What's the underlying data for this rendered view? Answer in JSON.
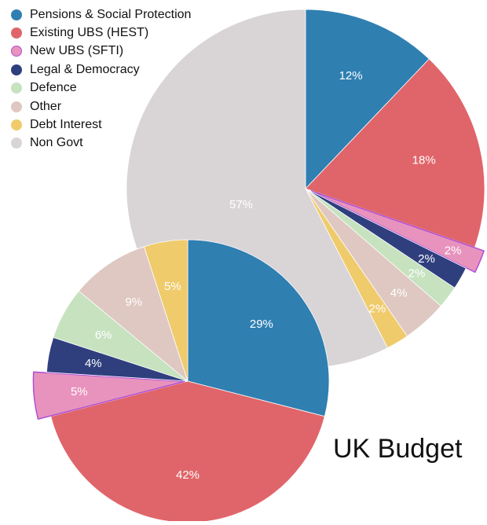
{
  "chart_data": [
    {
      "type": "pie",
      "title": "",
      "categories": [
        "Pensions & Social Protection",
        "Existing UBS (HEST)",
        "New UBS (SFTI)",
        "Legal & Democracy",
        "Defence",
        "Other",
        "Debt Interest",
        "Non Govt"
      ],
      "values": [
        12,
        18,
        2,
        2,
        2,
        4,
        2,
        57
      ],
      "data_labels": [
        "12%",
        "18%",
        "2%",
        "2%",
        "2%",
        "4%",
        "2%",
        "57%"
      ],
      "exploded": [
        "New UBS (SFTI)"
      ]
    },
    {
      "type": "pie",
      "title": "",
      "categories": [
        "Pensions & Social Protection",
        "Existing UBS (HEST)",
        "New UBS (SFTI)",
        "Legal & Democracy",
        "Defence",
        "Other",
        "Debt Interest"
      ],
      "values": [
        29,
        42,
        5,
        4,
        6,
        9,
        5
      ],
      "data_labels": [
        "29%",
        "42%",
        "5%",
        "4%",
        "6%",
        "9%",
        "5%"
      ],
      "exploded": [
        "New UBS (SFTI)"
      ]
    }
  ],
  "legend": {
    "placement": "top-left",
    "items": [
      {
        "label": "Pensions & Social Protection",
        "color": "#2f7fb1"
      },
      {
        "label": "Existing UBS (HEST)",
        "color": "#e0656a"
      },
      {
        "label": "New UBS (SFTI)",
        "color": "#e893bd"
      },
      {
        "label": "Legal & Democracy",
        "color": "#2f3f7e"
      },
      {
        "label": "Defence",
        "color": "#c6e2bf"
      },
      {
        "label": "Other",
        "color": "#dfc8c1"
      },
      {
        "label": "Debt Interest",
        "color": "#efcb6c"
      },
      {
        "label": "Non Govt",
        "color": "#d9d4d6"
      }
    ]
  },
  "colors": {
    "highlight_stroke": "#b04fd6"
  },
  "caption": "UK Budget"
}
